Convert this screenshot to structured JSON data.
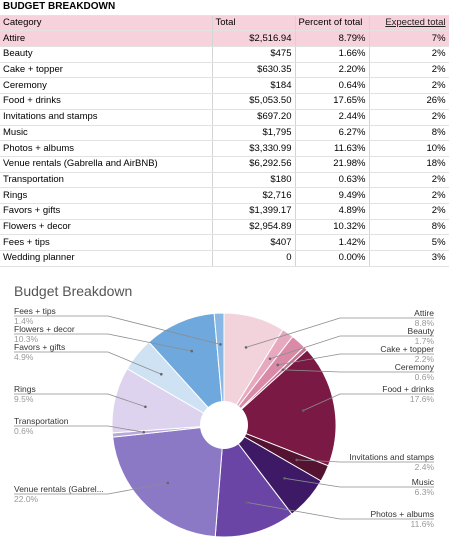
{
  "sheet": {
    "title": "BUDGET BREAKDOWN",
    "headers": {
      "category": "Category",
      "total": "Total",
      "percent": "Percent of total",
      "expected": "Expected total"
    },
    "rows": [
      {
        "category": "Attire",
        "total": "$2,516.94",
        "percent": "8.79%",
        "expected": "7%"
      },
      {
        "category": "Beauty",
        "total": "$475",
        "percent": "1.66%",
        "expected": "2%"
      },
      {
        "category": "Cake + topper",
        "total": "$630.35",
        "percent": "2.20%",
        "expected": "2%"
      },
      {
        "category": "Ceremony",
        "total": "$184",
        "percent": "0.64%",
        "expected": "2%"
      },
      {
        "category": "Food + drinks",
        "total": "$5,053.50",
        "percent": "17.65%",
        "expected": "26%"
      },
      {
        "category": "Invitations and stamps",
        "total": "$697.20",
        "percent": "2.44%",
        "expected": "2%"
      },
      {
        "category": "Music",
        "total": "$1,795",
        "percent": "6.27%",
        "expected": "8%"
      },
      {
        "category": "Photos + albums",
        "total": "$3,330.99",
        "percent": "11.63%",
        "expected": "10%"
      },
      {
        "category": "Venue rentals (Gabrella and AirBNB)",
        "total": "$6,292.56",
        "percent": "21.98%",
        "expected": "18%"
      },
      {
        "category": "Transportation",
        "total": "$180",
        "percent": "0.63%",
        "expected": "2%"
      },
      {
        "category": "Rings",
        "total": "$2,716",
        "percent": "9.49%",
        "expected": "2%"
      },
      {
        "category": "Favors + gifts",
        "total": "$1,399.17",
        "percent": "4.89%",
        "expected": "2%"
      },
      {
        "category": "Flowers + decor",
        "total": "$2,954.89",
        "percent": "10.32%",
        "expected": "8%"
      },
      {
        "category": "Fees + tips",
        "total": "$407",
        "percent": "1.42%",
        "expected": "5%"
      },
      {
        "category": "Wedding planner",
        "total": "0",
        "percent": "0.00%",
        "expected": "3%"
      }
    ]
  },
  "chart_data": {
    "type": "pie",
    "title": "Budget Breakdown",
    "slices": [
      {
        "name": "Attire",
        "value": 8.8,
        "label_pct": "8.8%",
        "color": "#f2d3dc"
      },
      {
        "name": "Beauty",
        "value": 1.7,
        "label_pct": "1.7%",
        "color": "#e6a9bf"
      },
      {
        "name": "Cake + topper",
        "value": 2.2,
        "label_pct": "2.2%",
        "color": "#d98aa6"
      },
      {
        "name": "Ceremony",
        "value": 0.6,
        "label_pct": "0.6%",
        "color": "#c66f90"
      },
      {
        "name": "Food + drinks",
        "value": 17.6,
        "label_pct": "17.6%",
        "color": "#7a1a44"
      },
      {
        "name": "Invitations and stamps",
        "value": 2.4,
        "label_pct": "2.4%",
        "color": "#541331"
      },
      {
        "name": "Music",
        "value": 6.3,
        "label_pct": "6.3%",
        "color": "#3e1a66"
      },
      {
        "name": "Photos + albums",
        "value": 11.6,
        "label_pct": "11.6%",
        "color": "#6a45a6"
      },
      {
        "name": "Venue rentals (Gabrel...",
        "value": 22.0,
        "label_pct": "22.0%",
        "color": "#8c79c6"
      },
      {
        "name": "Transportation",
        "value": 0.6,
        "label_pct": "0.6%",
        "color": "#b8a8dd"
      },
      {
        "name": "Rings",
        "value": 9.5,
        "label_pct": "9.5%",
        "color": "#ddd3ee"
      },
      {
        "name": "Favors + gifts",
        "value": 4.9,
        "label_pct": "4.9%",
        "color": "#cfe2f3"
      },
      {
        "name": "Flowers + decor",
        "value": 10.3,
        "label_pct": "10.3%",
        "color": "#6fa8dc"
      },
      {
        "name": "Fees + tips",
        "value": 1.4,
        "label_pct": "1.4%",
        "color": "#8ab8e4"
      }
    ]
  }
}
